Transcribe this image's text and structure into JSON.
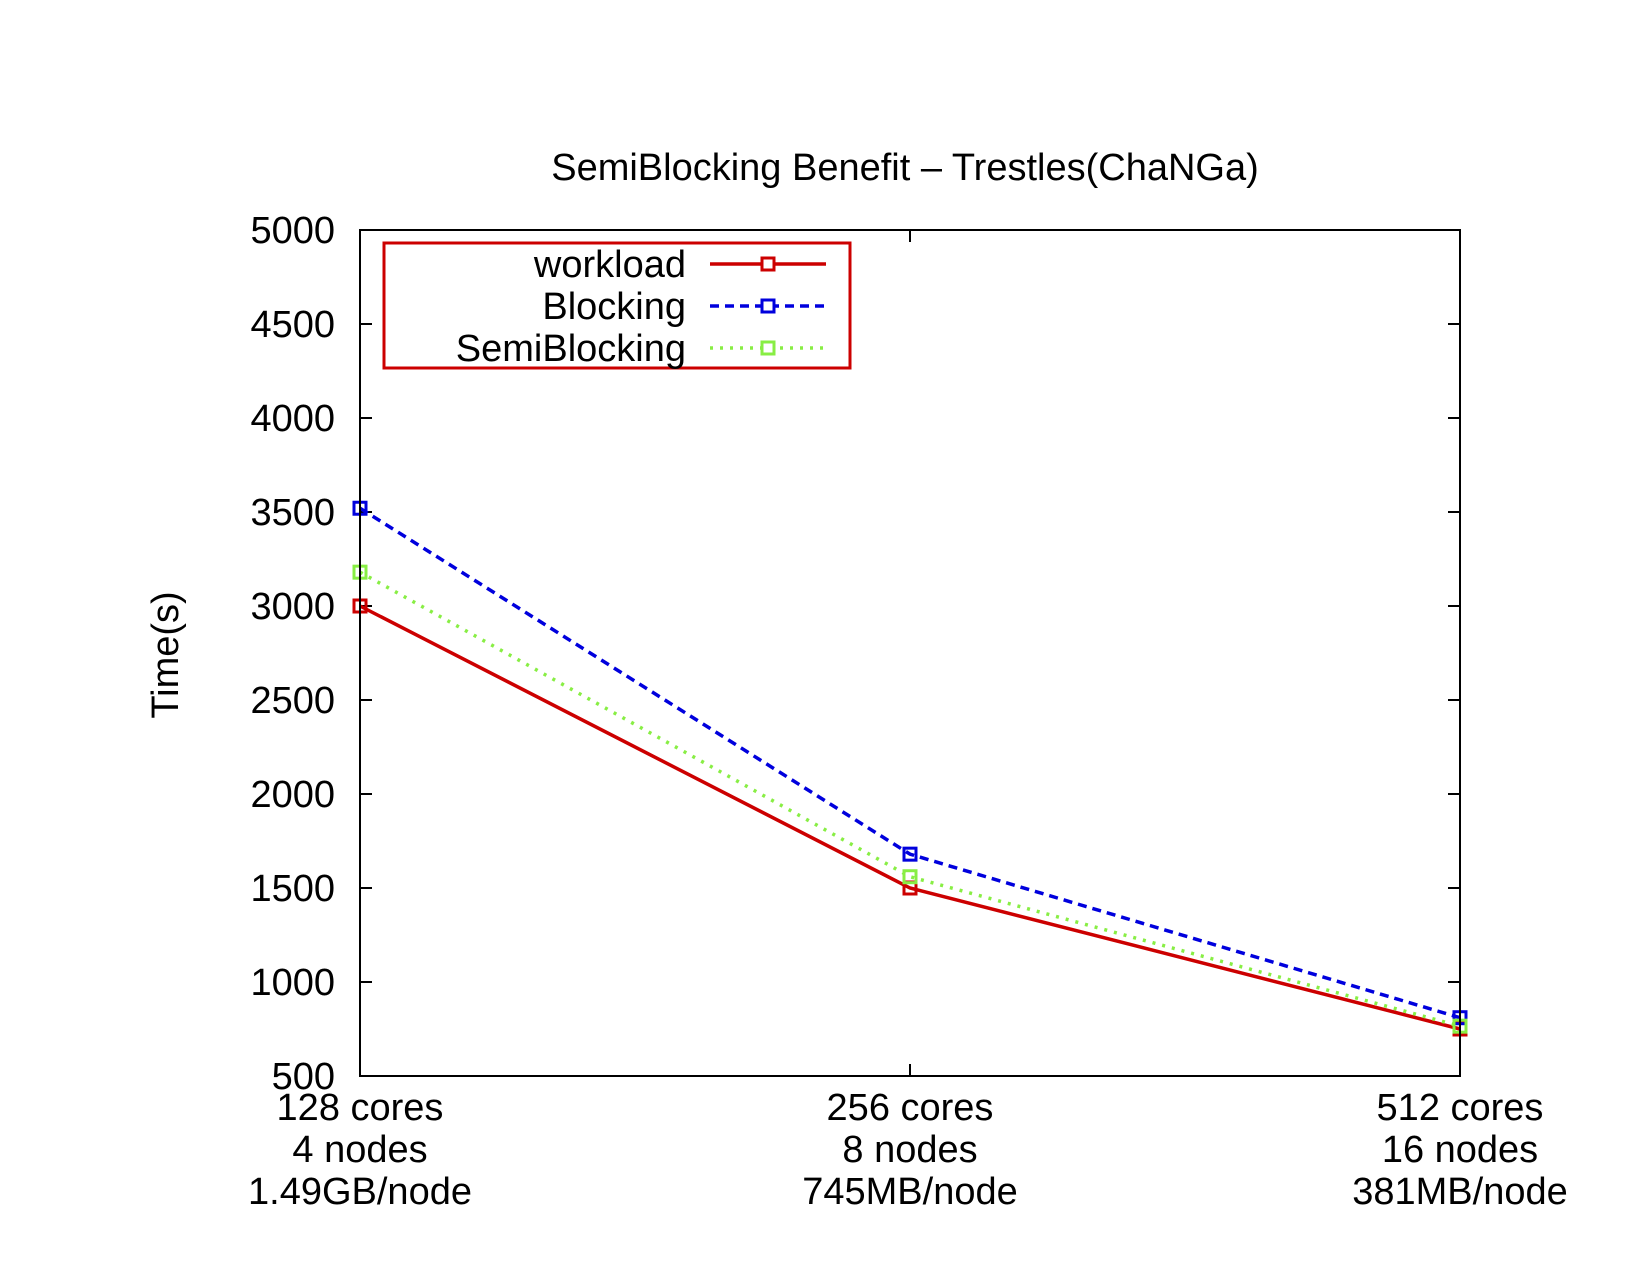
{
  "chart_data": {
    "type": "line",
    "title": "SemiBlocking Benefit – Trestles(ChaNGa)",
    "xlabel": "",
    "ylabel": "Time(s)",
    "ylim": [
      500,
      5000
    ],
    "yticks": [
      "5000",
      "4500",
      "4000",
      "3500",
      "3000",
      "2500",
      "2000",
      "1500",
      "1000",
      "500"
    ],
    "categories": [
      [
        "128 cores",
        "4 nodes",
        "1.49GB/node"
      ],
      [
        "256 cores",
        "8 nodes",
        "745MB/node"
      ],
      [
        "512 cores",
        "16 nodes",
        "381MB/node"
      ]
    ],
    "grid": false,
    "legend_position": "top-left",
    "series": [
      {
        "name": "workload",
        "values": [
          3000,
          1500,
          750
        ],
        "color": "#cc0000",
        "dash": "solid"
      },
      {
        "name": "Blocking",
        "values": [
          3520,
          1680,
          810
        ],
        "color": "#0000dd",
        "dash": "dashed"
      },
      {
        "name": "SemiBlocking",
        "values": [
          3180,
          1560,
          765
        ],
        "color": "#88ee44",
        "dash": "dotted"
      }
    ]
  }
}
